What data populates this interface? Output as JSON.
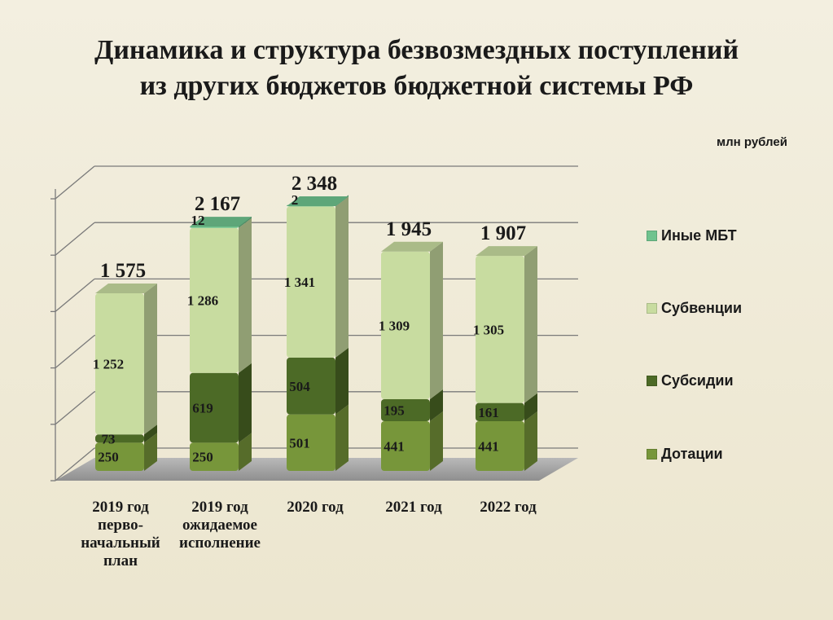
{
  "chart_data": {
    "type": "bar",
    "stacked": true,
    "three_d": true,
    "title": [
      "Динамика и структура безвозмездных поступлений",
      "из других бюджетов бюджетной системы РФ"
    ],
    "unit": "млн рублей",
    "categories": [
      [
        "2019 год",
        "перво-",
        "начальный",
        "план"
      ],
      [
        "2019 год",
        "ожидаемое",
        "исполнение"
      ],
      [
        "2020 год"
      ],
      [
        "2021 год"
      ],
      [
        "2022 год"
      ]
    ],
    "series": [
      {
        "name": "Дотации",
        "values": [
          250,
          250,
          501,
          441,
          441
        ],
        "labels": [
          "250",
          "250",
          "501",
          "441",
          "441"
        ],
        "color": "#77963a"
      },
      {
        "name": "Субсидии",
        "values": [
          73,
          619,
          504,
          195,
          161
        ],
        "labels": [
          "73",
          "619",
          "504",
          "195",
          "161"
        ],
        "color": "#4c6a26"
      },
      {
        "name": "Субвенции",
        "values": [
          1252,
          1286,
          1341,
          1309,
          1305
        ],
        "labels": [
          "1 252",
          "1 286",
          "1 341",
          "1 309",
          "1 305"
        ],
        "color": "#c8dca0"
      },
      {
        "name": "Иные МБТ",
        "values": [
          0,
          12,
          2,
          0,
          0
        ],
        "labels": [
          "",
          "12",
          "2",
          "",
          ""
        ],
        "color": "#6fc38e"
      }
    ],
    "totals": [
      "1 575",
      "2 167",
      "2 348",
      "1 945",
      "1 907"
    ],
    "legend_order": [
      "Иные МБТ",
      "Субвенции",
      "Субсидии",
      "Дотации"
    ],
    "legend_position": "right",
    "ylim": [
      0,
      2500
    ],
    "grid": true
  }
}
